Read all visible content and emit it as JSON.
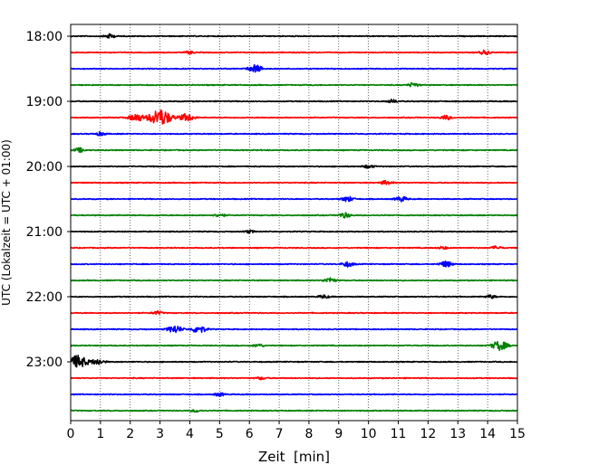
{
  "chart_data": {
    "type": "line",
    "title": "",
    "xlabel": "Zeit  [min]",
    "ylabel": "UTC (Lokalzeit = UTC + 01:00)",
    "xlim": [
      0,
      15
    ],
    "x_ticks": [
      0,
      1,
      2,
      3,
      4,
      5,
      6,
      7,
      8,
      9,
      10,
      11,
      12,
      13,
      14,
      15
    ],
    "x_tick_labels": [
      "0",
      "1",
      "2",
      "3",
      "4",
      "5",
      "6",
      "7",
      "8",
      "9",
      "10",
      "11",
      "12",
      "13",
      "14",
      "15"
    ],
    "y_tick_labels": [
      "18:00",
      "19:00",
      "20:00",
      "21:00",
      "22:00",
      "23:00"
    ],
    "y_tick_row_index": [
      0,
      4,
      8,
      12,
      16,
      20
    ],
    "grid": "vertical dotted",
    "colors": [
      "#000000",
      "#ff0000",
      "#0000ff",
      "#008000"
    ],
    "rows": [
      {
        "time": "18:00",
        "color": "#000000",
        "events": [
          {
            "x": 1.3,
            "a": 0.25
          }
        ]
      },
      {
        "time": "18:15",
        "color": "#ff0000",
        "events": [
          {
            "x": 13.9,
            "a": 0.25
          },
          {
            "x": 4.0,
            "a": 0.15
          }
        ]
      },
      {
        "time": "18:30",
        "color": "#0000ff",
        "events": [
          {
            "x": 6.2,
            "a": 0.45
          }
        ]
      },
      {
        "time": "18:45",
        "color": "#008000",
        "events": [
          {
            "x": 11.5,
            "a": 0.25
          }
        ]
      },
      {
        "time": "19:00",
        "color": "#000000",
        "events": [
          {
            "x": 10.8,
            "a": 0.2
          }
        ]
      },
      {
        "time": "19:15",
        "color": "#ff0000",
        "events": [
          {
            "x": 2.2,
            "a": 0.45
          },
          {
            "x": 3.0,
            "a": 1.0
          },
          {
            "x": 3.9,
            "a": 0.45
          },
          {
            "x": 12.6,
            "a": 0.25
          }
        ]
      },
      {
        "time": "19:30",
        "color": "#0000ff",
        "events": [
          {
            "x": 1.0,
            "a": 0.2
          }
        ]
      },
      {
        "time": "19:45",
        "color": "#008000",
        "events": [
          {
            "x": 0.3,
            "a": 0.25
          }
        ]
      },
      {
        "time": "20:00",
        "color": "#000000",
        "events": [
          {
            "x": 10.0,
            "a": 0.2
          }
        ]
      },
      {
        "time": "20:15",
        "color": "#ff0000",
        "events": [
          {
            "x": 10.6,
            "a": 0.25
          }
        ]
      },
      {
        "time": "20:30",
        "color": "#0000ff",
        "events": [
          {
            "x": 9.3,
            "a": 0.3
          },
          {
            "x": 11.1,
            "a": 0.3
          }
        ]
      },
      {
        "time": "20:45",
        "color": "#008000",
        "events": [
          {
            "x": 9.2,
            "a": 0.3
          },
          {
            "x": 5.0,
            "a": 0.2
          }
        ]
      },
      {
        "time": "21:00",
        "color": "#000000",
        "events": [
          {
            "x": 6.0,
            "a": 0.15
          }
        ]
      },
      {
        "time": "21:15",
        "color": "#ff0000",
        "events": [
          {
            "x": 14.3,
            "a": 0.2
          },
          {
            "x": 12.5,
            "a": 0.15
          }
        ]
      },
      {
        "time": "21:30",
        "color": "#0000ff",
        "events": [
          {
            "x": 9.3,
            "a": 0.3
          },
          {
            "x": 12.6,
            "a": 0.35
          }
        ]
      },
      {
        "time": "21:45",
        "color": "#008000",
        "events": [
          {
            "x": 8.7,
            "a": 0.3
          }
        ]
      },
      {
        "time": "22:00",
        "color": "#000000",
        "events": [
          {
            "x": 8.5,
            "a": 0.2
          },
          {
            "x": 14.1,
            "a": 0.2
          }
        ]
      },
      {
        "time": "22:15",
        "color": "#ff0000",
        "events": [
          {
            "x": 2.9,
            "a": 0.2
          }
        ]
      },
      {
        "time": "22:30",
        "color": "#0000ff",
        "events": [
          {
            "x": 3.5,
            "a": 0.45
          },
          {
            "x": 4.3,
            "a": 0.45
          }
        ]
      },
      {
        "time": "22:45",
        "color": "#008000",
        "events": [
          {
            "x": 14.4,
            "a": 0.55
          },
          {
            "x": 6.3,
            "a": 0.2
          }
        ]
      },
      {
        "time": "23:00",
        "color": "#000000",
        "events": [
          {
            "x": 0.25,
            "a": 0.75
          },
          {
            "x": 0.9,
            "a": 0.35
          }
        ]
      },
      {
        "time": "23:15",
        "color": "#ff0000",
        "events": [
          {
            "x": 6.4,
            "a": 0.15
          }
        ]
      },
      {
        "time": "23:30",
        "color": "#0000ff",
        "events": [
          {
            "x": 5.0,
            "a": 0.2
          }
        ]
      },
      {
        "time": "23:45",
        "color": "#008000",
        "events": [
          {
            "x": 4.2,
            "a": 0.15
          }
        ]
      }
    ]
  }
}
